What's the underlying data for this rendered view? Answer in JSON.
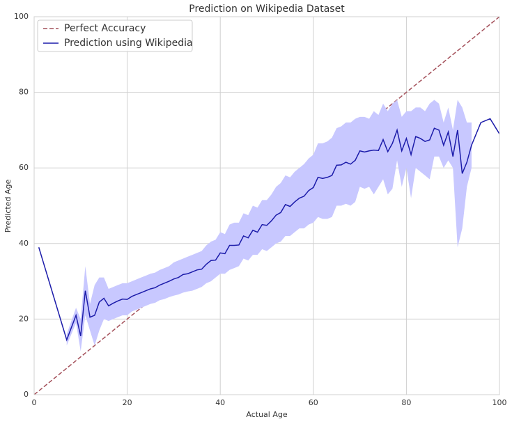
{
  "chart_data": {
    "type": "line",
    "title": "Prediction on Wikipedia Dataset",
    "xlabel": "Actual Age",
    "ylabel": "Predicted Age",
    "xlim": [
      0,
      100
    ],
    "ylim": [
      0,
      100
    ],
    "xticks": [
      0,
      20,
      40,
      60,
      80,
      100
    ],
    "yticks": [
      0,
      20,
      40,
      60,
      80,
      100
    ],
    "grid": true,
    "legend": "upper left",
    "series": [
      {
        "name": "Perfect Accuracy",
        "color": "#a4505a",
        "dashed": true,
        "x": [
          0,
          100
        ],
        "values": [
          0,
          100
        ]
      },
      {
        "name": "Prediction using Wikipedia",
        "color": "#1c1caa",
        "band_color": "#c8c8ff",
        "x": [
          1,
          7,
          9,
          10,
          11,
          12,
          13,
          14,
          15,
          16,
          17,
          18,
          19,
          20,
          21,
          22,
          23,
          24,
          25,
          26,
          27,
          28,
          29,
          30,
          31,
          32,
          33,
          34,
          35,
          36,
          37,
          38,
          39,
          40,
          41,
          42,
          43,
          44,
          45,
          46,
          47,
          48,
          49,
          50,
          51,
          52,
          53,
          54,
          55,
          56,
          57,
          58,
          59,
          60,
          61,
          62,
          63,
          64,
          65,
          66,
          67,
          68,
          69,
          70,
          71,
          72,
          73,
          74,
          75,
          76,
          77,
          78,
          79,
          80,
          81,
          82,
          83,
          84,
          85,
          86,
          87,
          88,
          89,
          90,
          91,
          92,
          93,
          94,
          96,
          98,
          100
        ],
        "values": [
          39,
          14.5,
          21,
          15.5,
          27.5,
          20.5,
          21,
          24.5,
          25.5,
          23.5,
          24.2,
          24.8,
          25.3,
          25.2,
          26,
          26.5,
          27,
          27.5,
          28,
          28.3,
          29,
          29.5,
          30,
          30.6,
          31,
          31.8,
          32,
          32.5,
          33,
          33.2,
          34.5,
          35.5,
          35.6,
          37.5,
          37.3,
          39.5,
          39.5,
          39.6,
          42,
          41.5,
          43.5,
          43,
          45,
          44.8,
          46,
          47.5,
          48.2,
          50.3,
          49.8,
          51,
          52,
          52.5,
          54,
          54.8,
          57.5,
          57.2,
          57.5,
          58,
          60.7,
          60.8,
          61.5,
          61,
          62,
          64.5,
          64.2,
          64.5,
          64.7,
          64.6,
          67.5,
          64.3,
          66.5,
          70,
          64.5,
          67.8,
          63.5,
          68.3,
          67.8,
          67,
          67.4,
          70.5,
          70,
          66,
          69.5,
          63,
          70,
          58.5,
          61.5,
          66,
          72,
          73,
          69
        ],
        "ci_lower": [
          null,
          13,
          19,
          11.5,
          21,
          17,
          13,
          17,
          20,
          19.5,
          20,
          20.5,
          21,
          21,
          22,
          22.5,
          23,
          23.5,
          24,
          24.3,
          25,
          25.3,
          25.8,
          26.2,
          26.5,
          27,
          27.3,
          27.5,
          28,
          28.5,
          29.5,
          30,
          31,
          32,
          32,
          33,
          33.5,
          34,
          36,
          35.5,
          37,
          37,
          38.5,
          38,
          39,
          40,
          40.5,
          42,
          42,
          43,
          44,
          44,
          45,
          45.5,
          47,
          46.5,
          46.5,
          47,
          50,
          50,
          50.5,
          50,
          51,
          55,
          54.5,
          55,
          53,
          55,
          57,
          53,
          54.5,
          62,
          55,
          60,
          52,
          60,
          59,
          58,
          57,
          63,
          63,
          60,
          62,
          60,
          39,
          44,
          55,
          60,
          null,
          null,
          null
        ],
        "ci_upper": [
          null,
          16,
          23,
          20,
          34,
          24,
          29,
          31,
          31,
          28,
          28.5,
          29,
          29.5,
          29.5,
          30,
          30.5,
          31,
          31.5,
          32,
          32.3,
          33,
          33.5,
          34,
          35,
          35.5,
          36,
          36.5,
          37,
          37.5,
          38,
          39.5,
          40.5,
          41,
          43,
          42.5,
          45,
          45.5,
          45.5,
          48,
          47.5,
          50,
          49.5,
          51.5,
          51.5,
          53,
          55,
          56,
          58,
          57.5,
          59,
          60,
          61,
          62.5,
          63.5,
          66.5,
          66.5,
          67,
          68,
          70.5,
          71,
          72,
          72,
          73,
          73.5,
          73.5,
          73,
          75,
          74,
          77,
          75,
          77,
          78,
          73.5,
          75,
          75,
          76,
          76,
          75,
          77,
          78,
          77,
          72,
          76,
          70,
          78,
          76,
          72,
          72,
          null,
          null,
          null
        ]
      }
    ]
  }
}
